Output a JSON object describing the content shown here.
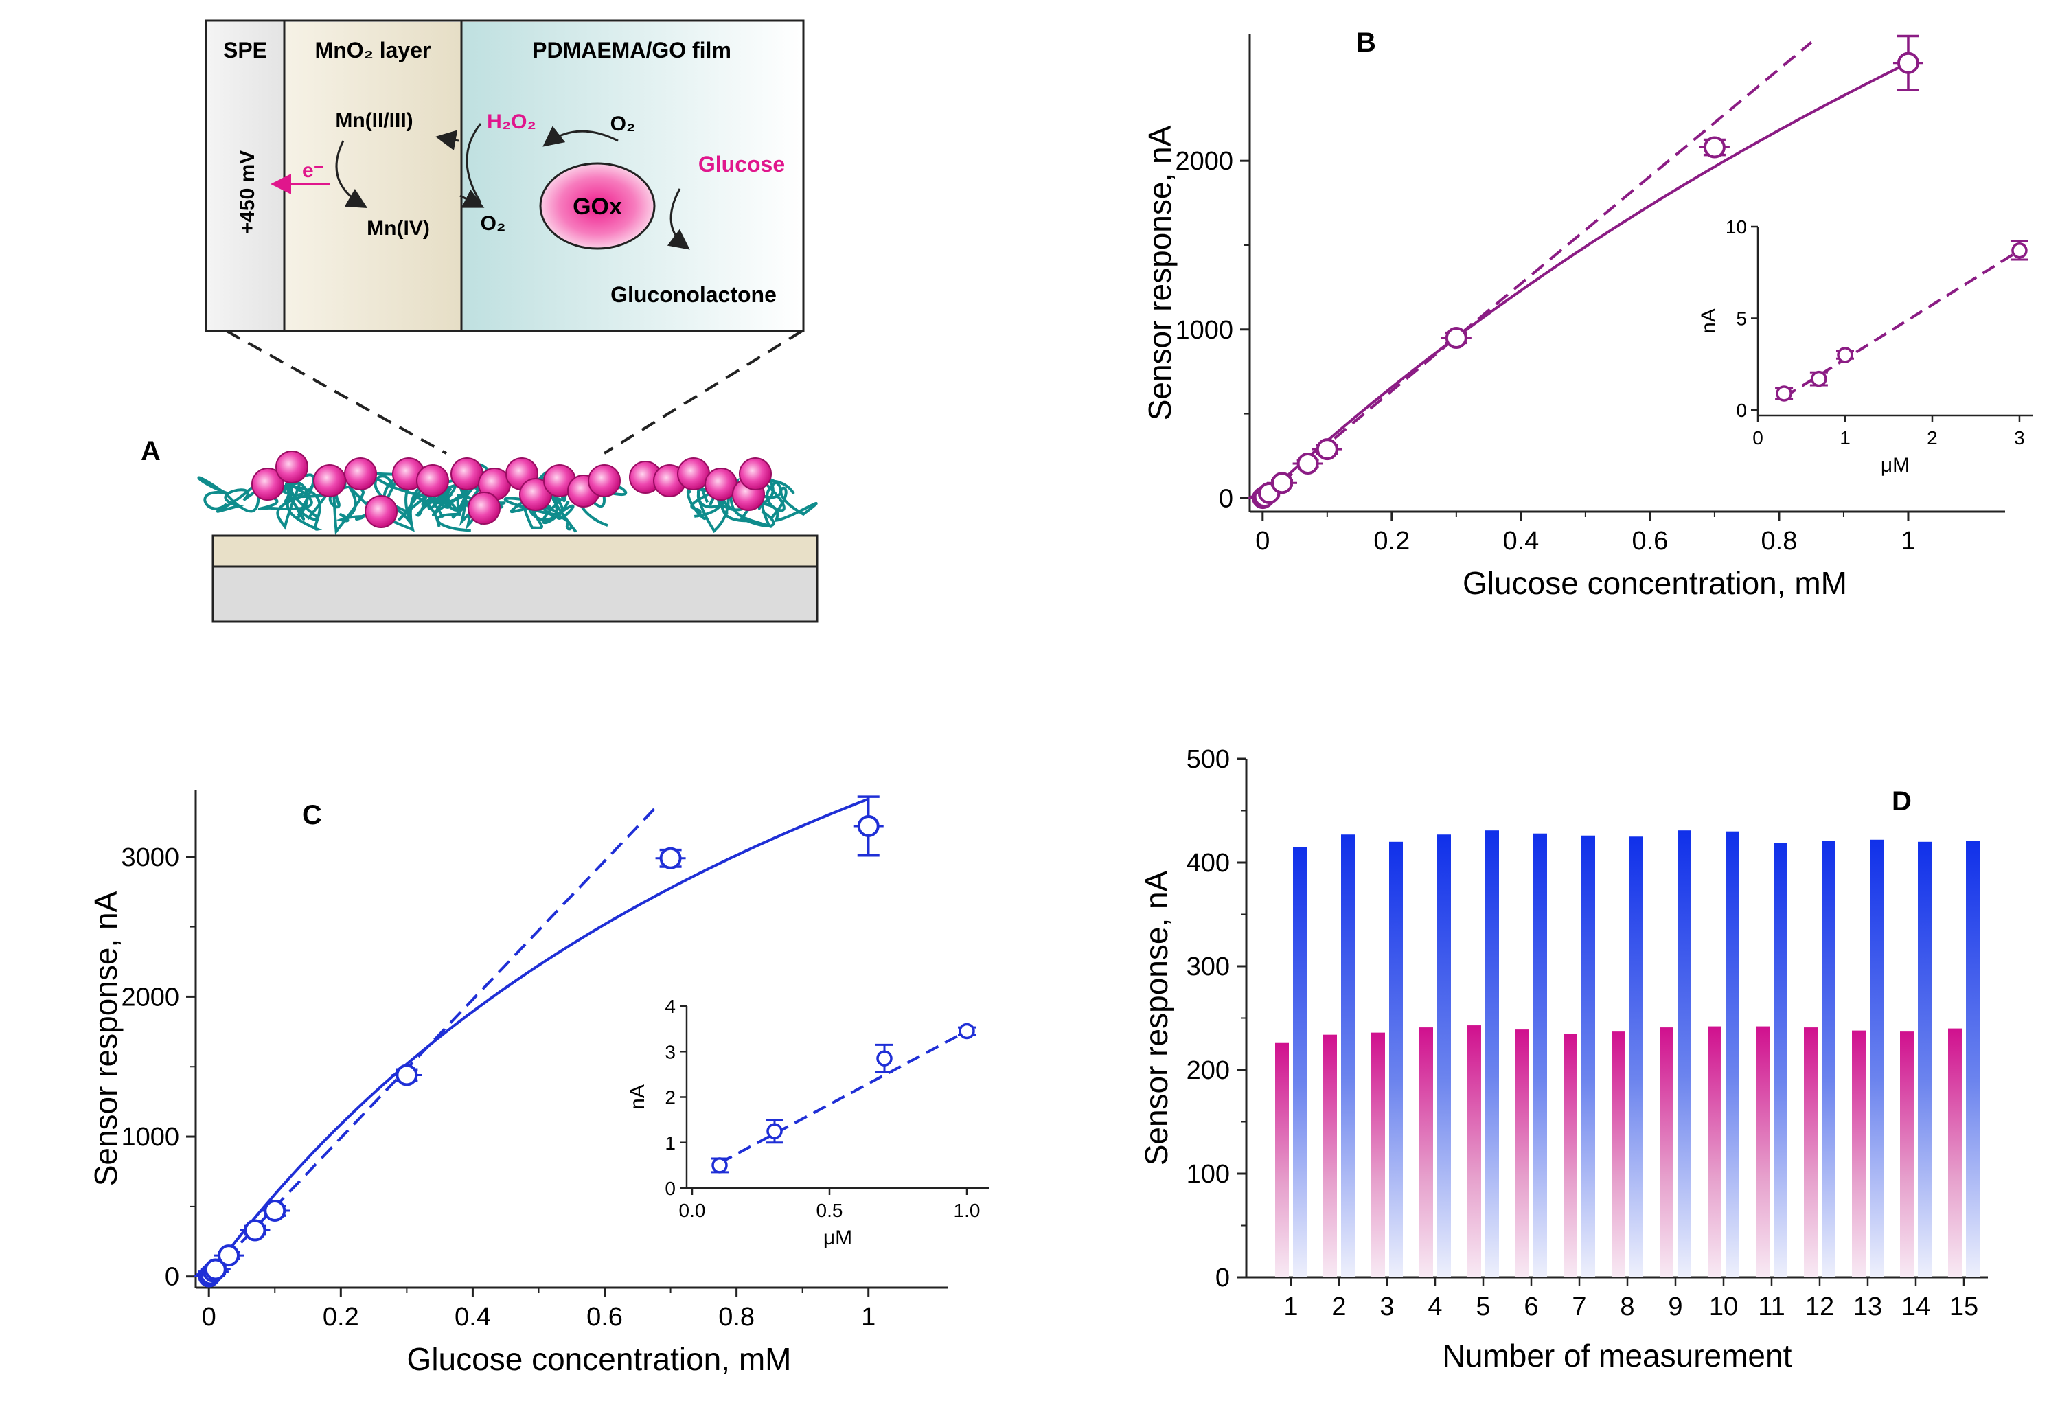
{
  "colors": {
    "purple": "#8b1c84",
    "blue": "#1f2fd6",
    "bar_blue": "#1432e6",
    "bar_pink": "#d4149a",
    "glucose": "#e0168c",
    "sphere": "#e0169a",
    "fiber": "#0f8c8c",
    "electrode_top": "#e8e0c8",
    "electrode_bottom": "#dcdcdc",
    "spe_bg": "#ededed",
    "mno2_bg": "#efeadb",
    "film_bg": "#d7ecec"
  },
  "panel_a": {
    "label": "A",
    "col_spe": "SPE",
    "col_mno2": "MnO₂ layer",
    "col_film": "PDMAEMA/GO film",
    "potential": "+450 mV",
    "electron": "e⁻",
    "mn_low": "Mn(II/III)",
    "mn_high": "Mn(IV)",
    "h2o2": "H₂O₂",
    "o2_left": "O₂",
    "o2_top": "O₂",
    "enzyme": "GOx",
    "glucose": "Glucose",
    "product": "Gluconolactone"
  },
  "chart_data": [
    {
      "id": "B",
      "type": "scatter",
      "label": "B",
      "xlabel": "Glucose concentration, mM",
      "ylabel": "Sensor response, nA",
      "xlim": [
        -0.02,
        1.15
      ],
      "ylim": [
        -80,
        2750
      ],
      "xticks": [
        0,
        0.2,
        0.4,
        0.6,
        0.8,
        1
      ],
      "xtick_labels": [
        "0",
        "0.2",
        "0.4",
        "0.6",
        "0.8",
        "1"
      ],
      "yticks": [
        0,
        1000,
        2000
      ],
      "ytick_labels": [
        "0",
        "1000",
        "2000"
      ],
      "points": [
        {
          "x": 0.0003,
          "y": 1,
          "err": 4
        },
        {
          "x": 0.001,
          "y": 3,
          "err": 6
        },
        {
          "x": 0.003,
          "y": 9,
          "err": 8
        },
        {
          "x": 0.01,
          "y": 30,
          "err": 12
        },
        {
          "x": 0.03,
          "y": 90,
          "err": 15
        },
        {
          "x": 0.07,
          "y": 205,
          "err": 20
        },
        {
          "x": 0.1,
          "y": 290,
          "err": 25
        },
        {
          "x": 0.3,
          "y": 950,
          "err": 30
        },
        {
          "x": 0.7,
          "y": 2080,
          "err": 45
        },
        {
          "x": 1.0,
          "y": 2580,
          "err": 160
        }
      ],
      "fit_dashed": {
        "x": [
          0,
          0.85
        ],
        "slope": 3180
      },
      "fit_solid": {
        "model": "michaelis-menten",
        "vmax": 9600,
        "km": 2.72,
        "x_max": 1.0
      },
      "inset": {
        "xlabel": "μM",
        "ylabel": "nA",
        "xlim": [
          0,
          3.15
        ],
        "ylim": [
          -0.3,
          10
        ],
        "xticks": [
          0,
          1,
          2,
          3
        ],
        "xtick_labels": [
          "0",
          "1",
          "2",
          "3"
        ],
        "yticks": [
          0,
          5,
          10
        ],
        "ytick_labels": [
          "0",
          "5",
          "10"
        ],
        "points": [
          {
            "x": 0.3,
            "y": 0.9,
            "err": 0.3
          },
          {
            "x": 0.7,
            "y": 1.7,
            "err": 0.35
          },
          {
            "x": 1.0,
            "y": 3.0,
            "err": 0.2
          },
          {
            "x": 3.0,
            "y": 8.7,
            "err": 0.5
          }
        ],
        "fit_dashed": {
          "x": [
            0.3,
            3.0
          ],
          "y": [
            0.7,
            8.7
          ]
        }
      }
    },
    {
      "id": "C",
      "type": "scatter",
      "label": "C",
      "xlabel": "Glucose concentration, mM",
      "ylabel": "Sensor response, nA",
      "xlim": [
        -0.02,
        1.12
      ],
      "ylim": [
        -80,
        3480
      ],
      "xticks": [
        0,
        0.2,
        0.4,
        0.6,
        0.8,
        1
      ],
      "xtick_labels": [
        "0",
        "0.2",
        "0.4",
        "0.6",
        "0.8",
        "1"
      ],
      "yticks": [
        0,
        1000,
        2000,
        3000
      ],
      "ytick_labels": [
        "0",
        "1000",
        "2000",
        "3000"
      ],
      "points": [
        {
          "x": 0.0001,
          "y": 1,
          "err": 4
        },
        {
          "x": 0.0003,
          "y": 2,
          "err": 6
        },
        {
          "x": 0.001,
          "y": 5,
          "err": 8
        },
        {
          "x": 0.003,
          "y": 15,
          "err": 10
        },
        {
          "x": 0.007,
          "y": 35,
          "err": 12
        },
        {
          "x": 0.01,
          "y": 50,
          "err": 15
        },
        {
          "x": 0.03,
          "y": 150,
          "err": 25
        },
        {
          "x": 0.07,
          "y": 330,
          "err": 30
        },
        {
          "x": 0.1,
          "y": 470,
          "err": 35
        },
        {
          "x": 0.3,
          "y": 1440,
          "err": 40
        },
        {
          "x": 0.7,
          "y": 2990,
          "err": 60
        },
        {
          "x": 1.0,
          "y": 3220,
          "err": 210
        }
      ],
      "fit_dashed": {
        "x": [
          0,
          0.68
        ],
        "slope": 4950
      },
      "fit_solid": {
        "model": "michaelis-menten",
        "vmax": 7340,
        "km": 1.15,
        "x_max": 1.0
      },
      "inset": {
        "xlabel": "μM",
        "ylabel": "nA",
        "xlim": [
          -0.02,
          1.08
        ],
        "ylim": [
          0,
          4
        ],
        "xticks": [
          0,
          0.5,
          1.0
        ],
        "xtick_labels": [
          "0.0",
          "0.5",
          "1.0"
        ],
        "yticks": [
          0,
          1,
          2,
          3,
          4
        ],
        "ytick_labels": [
          "0",
          "1",
          "2",
          "3",
          "4"
        ],
        "points": [
          {
            "x": 0.1,
            "y": 0.5,
            "err": 0.15
          },
          {
            "x": 0.3,
            "y": 1.25,
            "err": 0.25
          },
          {
            "x": 0.7,
            "y": 2.85,
            "err": 0.3
          },
          {
            "x": 1.0,
            "y": 3.45,
            "err": 0.08
          }
        ],
        "fit_dashed": {
          "x": [
            0.1,
            1.0
          ],
          "y": [
            0.55,
            3.45
          ]
        }
      }
    },
    {
      "id": "D",
      "type": "bar",
      "label": "D",
      "xlabel": "Number of measurement",
      "ylabel": "Sensor response, nA",
      "ylim": [
        0,
        500
      ],
      "yticks": [
        0,
        100,
        200,
        300,
        400,
        500
      ],
      "ytick_labels": [
        "0",
        "100",
        "200",
        "300",
        "400",
        "500"
      ],
      "categories": [
        "1",
        "2",
        "3",
        "4",
        "5",
        "6",
        "7",
        "8",
        "9",
        "10",
        "11",
        "12",
        "13",
        "14",
        "15"
      ],
      "series": [
        {
          "name": "pink",
          "values": [
            226,
            234,
            236,
            241,
            243,
            239,
            235,
            237,
            241,
            242,
            242,
            241,
            238,
            237,
            240
          ]
        },
        {
          "name": "blue",
          "values": [
            415,
            427,
            420,
            427,
            431,
            428,
            426,
            425,
            431,
            430,
            419,
            421,
            422,
            420,
            421
          ]
        }
      ]
    }
  ]
}
